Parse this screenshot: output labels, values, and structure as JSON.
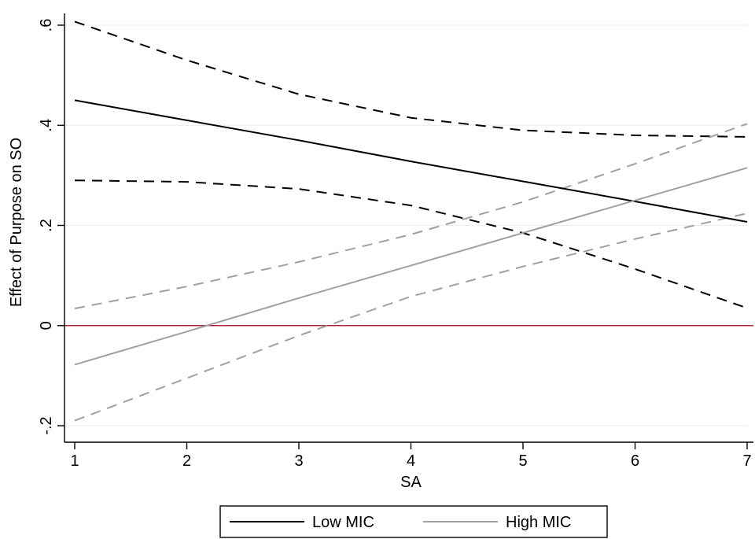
{
  "chart_data": {
    "type": "line",
    "xlabel": "SA",
    "ylabel": "Effect of Purpose on SO",
    "xlim": [
      1,
      7
    ],
    "ylim": [
      -0.2,
      0.6
    ],
    "x_ticks": [
      1,
      2,
      3,
      4,
      5,
      6,
      7
    ],
    "x_tick_labels": [
      "1",
      "2",
      "3",
      "4",
      "5",
      "6",
      "7"
    ],
    "y_ticks": [
      -0.2,
      0,
      0.2,
      0.4,
      0.6
    ],
    "y_tick_labels": [
      "-.2",
      "0",
      ".2",
      ".4",
      ".6"
    ],
    "grid": "horizontal",
    "reference_line": {
      "y": 0,
      "color": "#b0263f"
    },
    "legend": {
      "placement": "bottom",
      "entries": [
        {
          "label": "Low MIC",
          "color": "#000000"
        },
        {
          "label": "High MIC",
          "color": "#a0a0a0"
        }
      ]
    },
    "series": [
      {
        "name": "Low MIC",
        "color": "#000000",
        "x": [
          1,
          2,
          3,
          4,
          5,
          6,
          7
        ],
        "y": [
          0.45,
          0.41,
          0.37,
          0.328,
          0.288,
          0.248,
          0.207
        ],
        "ci_lower": [
          0.29,
          0.287,
          0.273,
          0.24,
          0.185,
          0.113,
          0.035
        ],
        "ci_upper": [
          0.607,
          0.53,
          0.462,
          0.415,
          0.39,
          0.38,
          0.377
        ]
      },
      {
        "name": "High MIC",
        "color": "#a0a0a0",
        "x": [
          1,
          2,
          3,
          4,
          5,
          6,
          7
        ],
        "y": [
          -0.078,
          -0.012,
          0.055,
          0.12,
          0.185,
          0.25,
          0.315
        ],
        "ci_lower": [
          -0.19,
          -0.105,
          -0.02,
          0.058,
          0.118,
          0.173,
          0.224
        ],
        "ci_upper": [
          0.034,
          0.078,
          0.127,
          0.182,
          0.247,
          0.323,
          0.403
        ]
      }
    ]
  }
}
